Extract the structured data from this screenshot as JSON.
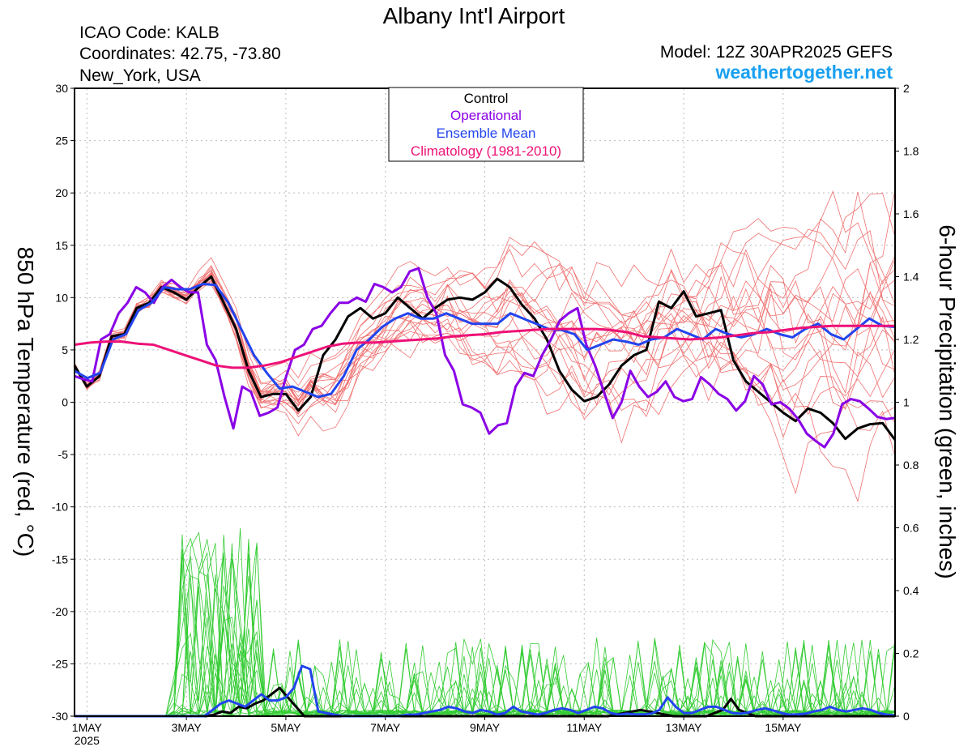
{
  "header": {
    "title": "Albany Int'l Airport",
    "icao": "ICAO Code: KALB",
    "coordinates": "Coordinates: 42.75, -73.80",
    "location": "New_York, USA",
    "model": "Model: 12Z 30APR2025 GEFS",
    "brand": "weathertogether.net"
  },
  "chart_data": {
    "type": "line",
    "x_start": "2025-04-30T12Z",
    "x_step_hours": 6,
    "xlim": [
      0,
      66
    ],
    "x_ticks": [
      {
        "label": "1MAY",
        "sub": "2025",
        "at": 1
      },
      {
        "label": "3MAY",
        "at": 9
      },
      {
        "label": "5MAY",
        "at": 17
      },
      {
        "label": "7MAY",
        "at": 25
      },
      {
        "label": "9MAY",
        "at": 33
      },
      {
        "label": "11MAY",
        "at": 41
      },
      {
        "label": "13MAY",
        "at": 49
      },
      {
        "label": "15MAY",
        "at": 57
      }
    ],
    "y_left": {
      "label": "850 hPa Temperature (red, °C)",
      "lim": [
        -30,
        30
      ],
      "ticks": [
        "30",
        "25",
        "20",
        "15",
        "10",
        "5",
        "0",
        "-5",
        "-10",
        "-15",
        "-20",
        "-25",
        "-30"
      ]
    },
    "y_right": {
      "label": "6-hour Precipitation (green, inches)",
      "lim": [
        0,
        2
      ],
      "ticks": [
        "2",
        "1.8",
        "1.6",
        "1.4",
        "1.2",
        "1",
        "0.8",
        "0.6",
        "0.4",
        "0.2",
        "0"
      ]
    },
    "grid": true,
    "legend": {
      "placement": "top-center",
      "items": [
        {
          "label": "Control",
          "color": "#000000"
        },
        {
          "label": "Operational",
          "color": "#8a00e6"
        },
        {
          "label": "Ensemble Mean",
          "color": "#2244ee"
        },
        {
          "label": "Climatology (1981-2010)",
          "color": "#ee1177"
        }
      ]
    },
    "colors": {
      "members_temp": "#f07070",
      "members_precip": "#33cc33",
      "control": "#000000",
      "operational": "#8a00e6",
      "mean": "#2244ee",
      "climatology": "#ee1177"
    },
    "series": [
      {
        "name": "Control",
        "axis": "temp",
        "values": [
          3.5,
          1.5,
          2.5,
          6.3,
          6.5,
          9,
          9.5,
          11,
          10.5,
          9.8,
          11,
          12,
          9.5,
          7,
          3,
          0.5,
          0.8,
          0.8,
          -0.8,
          0.5,
          4.5,
          6,
          8.2,
          9,
          8,
          8.5,
          10,
          9,
          8,
          9,
          9.8,
          10,
          9.8,
          10.5,
          11.8,
          11,
          9.3,
          8,
          6,
          3,
          1.2,
          0.1,
          0.5,
          1.7,
          3.5,
          4.5,
          5,
          9.6,
          9,
          10.6,
          8.2,
          8.5,
          8.8,
          4,
          2,
          1,
          0,
          -1,
          -1.8,
          -0.6,
          -1,
          -2,
          -3.5,
          -2.5,
          -2.1,
          -2,
          -3.6
        ]
      },
      {
        "name": "Operational",
        "axis": "temp",
        "values": [
          2.5,
          2.2,
          2,
          6,
          6.5,
          8.5,
          9.5,
          11,
          10.5,
          9.5,
          11,
          11.7,
          11,
          10.5,
          10.5,
          5.5,
          4,
          0.5,
          -2.5,
          1.5,
          1,
          -1.3,
          -1,
          -0.5,
          2.5,
          5,
          5.5,
          7,
          7.3,
          8.5,
          9.5,
          9.5,
          10,
          9.6,
          11.3,
          11,
          10.5,
          11,
          12.5,
          12.8,
          10,
          8.5,
          4.5,
          3,
          -0.2,
          -0.5,
          -1,
          -3,
          -2.2,
          -2,
          1.5,
          2.8,
          2.5,
          4.5,
          6,
          7.8,
          8.5,
          9,
          5.5,
          3.5,
          1,
          -1.5,
          0,
          3,
          1.5,
          0.5,
          1,
          2,
          0.5,
          0.1,
          0.3,
          2.4,
          1.7,
          0.8,
          0.3,
          -0.8,
          0.1,
          2.5,
          1.7,
          -0.2,
          0,
          -0.6,
          -1.6,
          -3,
          -3.7,
          -4.3,
          -3,
          -0.2,
          0.3,
          0.1,
          -0.6,
          -1.4,
          -1.6,
          -1.5
        ]
      },
      {
        "name": "Ensemble Mean",
        "axis": "temp",
        "values": [
          3,
          2.3,
          2.8,
          6,
          6.5,
          8.8,
          9.5,
          11,
          10.8,
          10.8,
          11.3,
          11.2,
          9.5,
          7,
          4.5,
          2.8,
          1.3,
          1.5,
          1,
          0.5,
          0.8,
          2.5,
          5,
          6,
          7.2,
          8,
          8.5,
          8,
          8,
          8.5,
          8,
          7.5,
          7.5,
          7.5,
          8.5,
          8,
          7.5,
          7,
          6.9,
          6.5,
          5,
          5.5,
          6,
          5.8,
          5.5,
          6,
          6.2,
          7,
          6.5,
          6,
          7,
          6.5,
          6.2,
          6.5,
          7,
          6.5,
          6.2,
          7,
          7.5,
          6.5,
          6,
          7,
          8,
          7.3,
          7.2
        ]
      },
      {
        "name": "Climatology (1981-2010)",
        "axis": "temp",
        "values": [
          5.5,
          5.7,
          5.8,
          5.8,
          5.6,
          5.5,
          5,
          4.5,
          4,
          3.5,
          3.3,
          3.3,
          3.5,
          3.8,
          4.3,
          4.8,
          5.3,
          5.6,
          5.7,
          5.7,
          5.8,
          5.9,
          6,
          6.1,
          6.3,
          6.4,
          6.5,
          6.7,
          6.8,
          6.9,
          7,
          7,
          7,
          7,
          6.9,
          6.7,
          6.3,
          6.2,
          6.1,
          6,
          6.1,
          6.2,
          6.4,
          6.6,
          6.7,
          6.9,
          7.1,
          7.2,
          7.3,
          7.3,
          7.3,
          7.3,
          7.3
        ]
      },
      {
        "name": "Control",
        "axis": "precip",
        "values": [
          0,
          0,
          0,
          0,
          0,
          0,
          0,
          0,
          0,
          0,
          0,
          0,
          0,
          0,
          0,
          0,
          0,
          0.005,
          0.015,
          0.01,
          0.03,
          0.025,
          0.04,
          0.05,
          0.07,
          0.09,
          0.06,
          0.03,
          0,
          0,
          0,
          0,
          0,
          0,
          0,
          0,
          0,
          0,
          0,
          0,
          0,
          0,
          0,
          0,
          0,
          0,
          0,
          0,
          0,
          0,
          0,
          0,
          0,
          0,
          0,
          0,
          0,
          0,
          0,
          0,
          0,
          0,
          0,
          0,
          0,
          0,
          0.005,
          0.01,
          0.015,
          0.02,
          0.015,
          0.01,
          0.005,
          0,
          0,
          0,
          0,
          0,
          0.01,
          0.02,
          0.055,
          0.02,
          0.01,
          0,
          0,
          0,
          0,
          0,
          0,
          0,
          0,
          0,
          0,
          0,
          0,
          0,
          0,
          0,
          0,
          0,
          0
        ]
      },
      {
        "name": "Ensemble Mean",
        "axis": "precip",
        "values": [
          0,
          0,
          0,
          0,
          0,
          0,
          0,
          0,
          0,
          0,
          0,
          0,
          0,
          0,
          0,
          0,
          0,
          0.02,
          0.04,
          0.05,
          0.04,
          0.03,
          0.05,
          0.07,
          0.05,
          0.05,
          0.06,
          0.09,
          0.16,
          0.15,
          0.015,
          0.01,
          0.005,
          0,
          0,
          0,
          0,
          0,
          0,
          0,
          0,
          0.005,
          0.005,
          0.01,
          0.015,
          0.02,
          0.03,
          0.025,
          0.015,
          0.01,
          0.02,
          0.015,
          0.005,
          0.01,
          0.03,
          0.015,
          0.01,
          0.005,
          0.01,
          0.02,
          0.025,
          0.02,
          0.01,
          0.02,
          0.03,
          0.025,
          0.01,
          0.005,
          0.008,
          0.006,
          0.006,
          0.008,
          0.02,
          0.06,
          0.03,
          0.01,
          0.01,
          0.02,
          0.03,
          0.03,
          0.02,
          0.01,
          0.008,
          0.012,
          0.02,
          0.025,
          0.018,
          0.01,
          0.005,
          0.006,
          0.008,
          0.015,
          0.02,
          0.03,
          0.02,
          0.015,
          0.02,
          0.025,
          0.02,
          0.01,
          0.005,
          0.002
        ]
      }
    ]
  }
}
